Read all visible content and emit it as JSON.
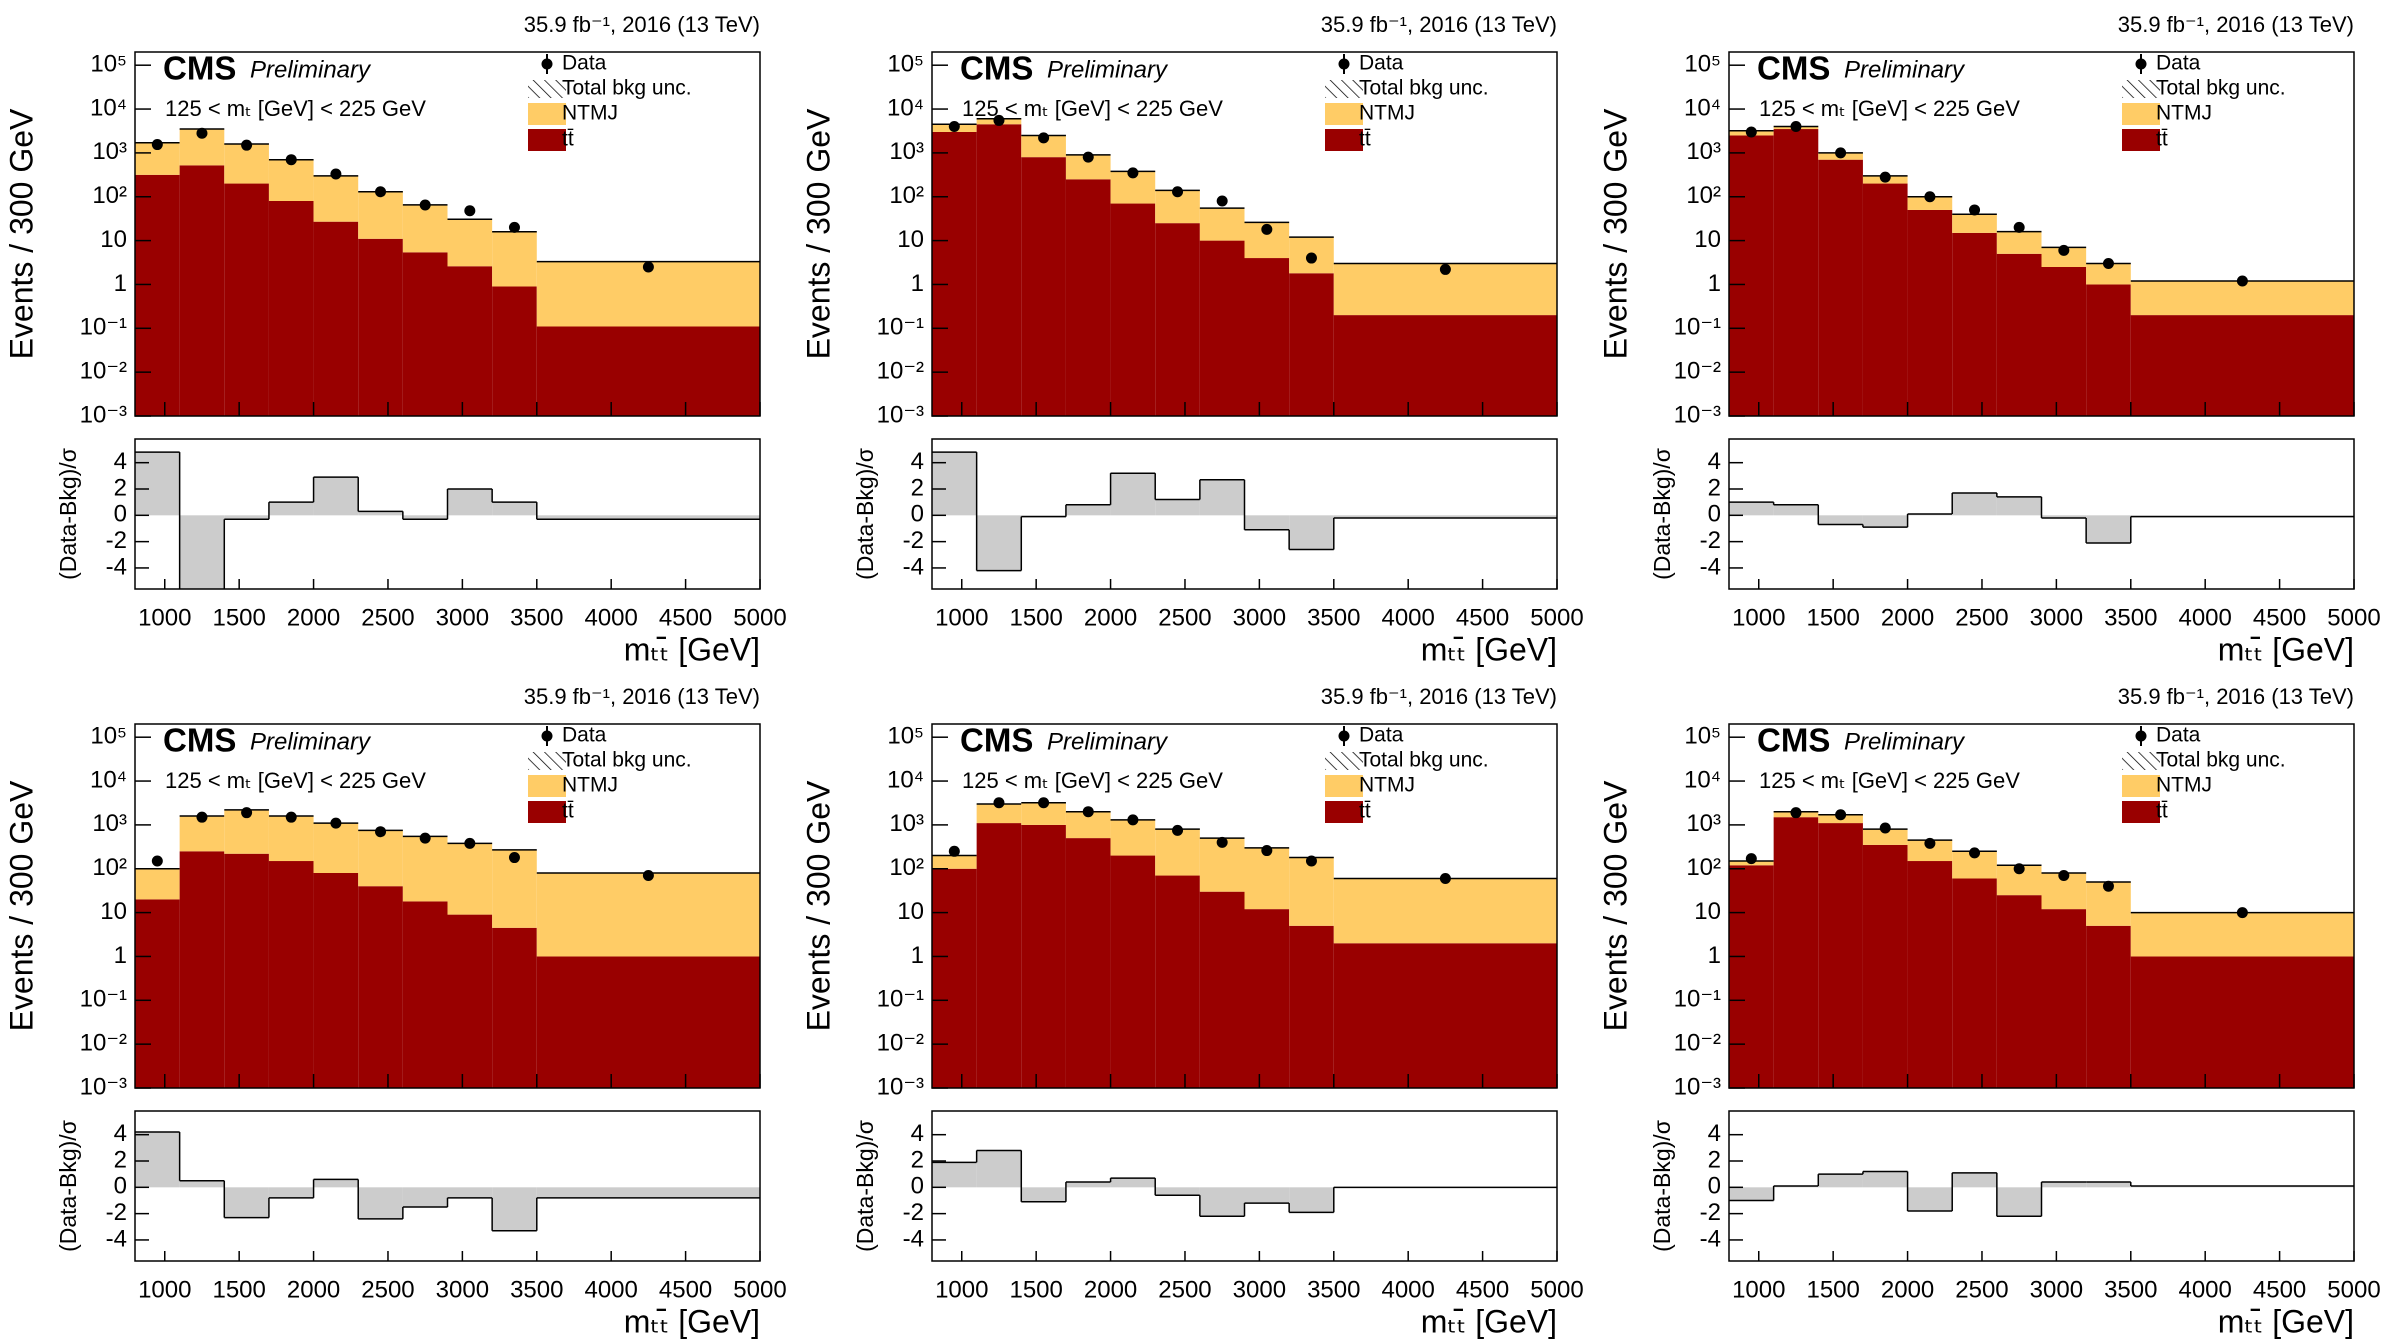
{
  "chart_data": [
    {
      "type": "histogram",
      "title": "35.9 fb⁻¹, 2016 (13 TeV)",
      "experiment": "CMS",
      "status": "Preliminary",
      "selection": "125 < mₜ [GeV] < 225 GeV",
      "ylabel": "Events / 300 GeV",
      "xlabel": "mₜₜ̄ [GeV]",
      "ratio_ylabel": "(Data-Bkg)/σ",
      "uncertainty_label": "Total bkg unc.",
      "bins": [
        800,
        1100,
        1400,
        1700,
        2000,
        2300,
        2600,
        2900,
        3200,
        3500,
        5000
      ],
      "xlim": [
        800,
        5000
      ],
      "xticks": [
        1000,
        1500,
        2000,
        2500,
        3000,
        3500,
        4000,
        4500,
        5000
      ],
      "log_y": true,
      "ylim": [
        0.001,
        200000
      ],
      "yticks": [
        {
          "value": 0.001,
          "label": "10⁻³"
        },
        {
          "value": 0.01,
          "label": "10⁻²"
        },
        {
          "value": 0.1,
          "label": "10⁻¹"
        },
        1,
        10,
        {
          "value": 100,
          "label": "10²"
        },
        {
          "value": 1000,
          "label": "10³"
        },
        {
          "value": 10000,
          "label": "10⁴"
        },
        {
          "value": 100000,
          "label": "10⁵"
        }
      ],
      "series": [
        {
          "name": "tt̄",
          "style": "stack",
          "color": "#990000",
          "values": [
            316,
            520,
            200,
            80,
            27,
            11,
            5.4,
            2.6,
            0.9,
            0.11
          ]
        },
        {
          "name": "NTMJ",
          "style": "stack",
          "color": "#ffcc66",
          "values": [
            1384,
            2980,
            1400,
            620,
            273,
            119,
            60,
            28,
            15,
            3.2
          ]
        },
        {
          "name": "Data",
          "style": "points",
          "color": "#000000",
          "values": [
            1550,
            2800,
            1500,
            700,
            330,
            130,
            65,
            48,
            20,
            2.5
          ]
        }
      ],
      "pulls": [
        4.8,
        -6,
        -0.3,
        1.0,
        2.9,
        0.3,
        -0.3,
        2.0,
        1.0,
        -0.3
      ],
      "pull_color": "#cccccc",
      "ratio_ylim": [
        -5.6,
        5.8
      ],
      "ratio_yticks": [
        -4,
        -2,
        0,
        2,
        4
      ]
    },
    {
      "type": "histogram",
      "title": "35.9 fb⁻¹, 2016 (13 TeV)",
      "experiment": "CMS",
      "status": "Preliminary",
      "selection": "125 < mₜ [GeV] < 225 GeV",
      "ylabel": "Events / 300 GeV",
      "xlabel": "mₜₜ̄ [GeV]",
      "ratio_ylabel": "(Data-Bkg)/σ",
      "uncertainty_label": "Total bkg unc.",
      "bins": [
        800,
        1100,
        1400,
        1700,
        2000,
        2300,
        2600,
        2900,
        3200,
        3500,
        5000
      ],
      "xlim": [
        800,
        5000
      ],
      "xticks": [
        1000,
        1500,
        2000,
        2500,
        3000,
        3500,
        4000,
        4500,
        5000
      ],
      "log_y": true,
      "ylim": [
        0.001,
        200000
      ],
      "yticks": [
        {
          "value": 0.001,
          "label": "10⁻³"
        },
        {
          "value": 0.01,
          "label": "10⁻²"
        },
        {
          "value": 0.1,
          "label": "10⁻¹"
        },
        1,
        10,
        {
          "value": 100,
          "label": "10²"
        },
        {
          "value": 1000,
          "label": "10³"
        },
        {
          "value": 10000,
          "label": "10⁴"
        },
        {
          "value": 100000,
          "label": "10⁵"
        }
      ],
      "series": [
        {
          "name": "tt̄",
          "style": "stack",
          "color": "#990000",
          "values": [
            3000,
            4500,
            800,
            250,
            70,
            25,
            10,
            4,
            1.8,
            0.2
          ]
        },
        {
          "name": "NTMJ",
          "style": "stack",
          "color": "#ffcc66",
          "values": [
            1500,
            1500,
            1700,
            650,
            310,
            115,
            45,
            22,
            10.2,
            2.8
          ]
        },
        {
          "name": "Data",
          "style": "points",
          "color": "#000000",
          "values": [
            4000,
            5500,
            2200,
            800,
            350,
            130,
            80,
            18,
            4,
            2.2
          ]
        }
      ],
      "pulls": [
        4.8,
        -4.2,
        -0.1,
        0.8,
        3.2,
        1.2,
        2.7,
        -1.1,
        -2.6,
        -0.2
      ],
      "pull_color": "#cccccc",
      "ratio_ylim": [
        -5.6,
        5.8
      ],
      "ratio_yticks": [
        -4,
        -2,
        0,
        2,
        4
      ]
    },
    {
      "type": "histogram",
      "title": "35.9 fb⁻¹, 2016 (13 TeV)",
      "experiment": "CMS",
      "status": "Preliminary",
      "selection": "125 < mₜ [GeV] < 225 GeV",
      "ylabel": "Events / 300 GeV",
      "xlabel": "mₜₜ̄ [GeV]",
      "ratio_ylabel": "(Data-Bkg)/σ",
      "uncertainty_label": "Total bkg unc.",
      "bins": [
        800,
        1100,
        1400,
        1700,
        2000,
        2300,
        2600,
        2900,
        3200,
        3500,
        5000
      ],
      "xlim": [
        800,
        5000
      ],
      "xticks": [
        1000,
        1500,
        2000,
        2500,
        3000,
        3500,
        4000,
        4500,
        5000
      ],
      "log_y": true,
      "ylim": [
        0.001,
        200000
      ],
      "yticks": [
        {
          "value": 0.001,
          "label": "10⁻³"
        },
        {
          "value": 0.01,
          "label": "10⁻²"
        },
        {
          "value": 0.1,
          "label": "10⁻¹"
        },
        1,
        10,
        {
          "value": 100,
          "label": "10²"
        },
        {
          "value": 1000,
          "label": "10³"
        },
        {
          "value": 10000,
          "label": "10⁴"
        },
        {
          "value": 100000,
          "label": "10⁵"
        }
      ],
      "series": [
        {
          "name": "tt̄",
          "style": "stack",
          "color": "#990000",
          "values": [
            2500,
            3500,
            700,
            200,
            50,
            15,
            5,
            2.5,
            1,
            0.2
          ]
        },
        {
          "name": "NTMJ",
          "style": "stack",
          "color": "#ffcc66",
          "values": [
            700,
            500,
            300,
            100,
            50,
            25,
            11,
            4.5,
            2,
            1
          ]
        },
        {
          "name": "Data",
          "style": "points",
          "color": "#000000",
          "values": [
            3000,
            4000,
            1000,
            280,
            100,
            50,
            20,
            6,
            3,
            1.2
          ]
        }
      ],
      "pulls": [
        1.0,
        0.8,
        -0.7,
        -0.9,
        0.1,
        1.7,
        1.4,
        -0.2,
        -2.1,
        -0.1
      ],
      "pull_color": "#cccccc",
      "ratio_ylim": [
        -5.6,
        5.8
      ],
      "ratio_yticks": [
        -4,
        -2,
        0,
        2,
        4
      ]
    },
    {
      "type": "histogram",
      "title": "35.9 fb⁻¹, 2016 (13 TeV)",
      "experiment": "CMS",
      "status": "Preliminary",
      "selection": "125 < mₜ [GeV] < 225 GeV",
      "ylabel": "Events / 300 GeV",
      "xlabel": "mₜₜ̄ [GeV]",
      "ratio_ylabel": "(Data-Bkg)/σ",
      "uncertainty_label": "Total bkg unc.",
      "bins": [
        800,
        1100,
        1400,
        1700,
        2000,
        2300,
        2600,
        2900,
        3200,
        3500,
        5000
      ],
      "xlim": [
        800,
        5000
      ],
      "xticks": [
        1000,
        1500,
        2000,
        2500,
        3000,
        3500,
        4000,
        4500,
        5000
      ],
      "log_y": true,
      "ylim": [
        0.001,
        200000
      ],
      "yticks": [
        {
          "value": 0.001,
          "label": "10⁻³"
        },
        {
          "value": 0.01,
          "label": "10⁻²"
        },
        {
          "value": 0.1,
          "label": "10⁻¹"
        },
        1,
        10,
        {
          "value": 100,
          "label": "10²"
        },
        {
          "value": 1000,
          "label": "10³"
        },
        {
          "value": 10000,
          "label": "10⁴"
        },
        {
          "value": 100000,
          "label": "10⁵"
        }
      ],
      "series": [
        {
          "name": "tt̄",
          "style": "stack",
          "color": "#990000",
          "values": [
            20,
            250,
            220,
            150,
            80,
            40,
            18,
            9,
            4.5,
            1
          ]
        },
        {
          "name": "NTMJ",
          "style": "stack",
          "color": "#ffcc66",
          "values": [
            80,
            1350,
            1980,
            1450,
            1020,
            710,
            530,
            370,
            265,
            79
          ]
        },
        {
          "name": "Data",
          "style": "points",
          "color": "#000000",
          "values": [
            150,
            1500,
            1900,
            1500,
            1100,
            700,
            500,
            380,
            180,
            70
          ]
        }
      ],
      "pulls": [
        4.2,
        0.5,
        -2.3,
        -0.8,
        0.6,
        -2.4,
        -1.5,
        -0.8,
        -3.3,
        -0.8
      ],
      "pull_color": "#cccccc",
      "ratio_ylim": [
        -5.6,
        5.8
      ],
      "ratio_yticks": [
        -4,
        -2,
        0,
        2,
        4
      ]
    },
    {
      "type": "histogram",
      "title": "35.9 fb⁻¹, 2016 (13 TeV)",
      "experiment": "CMS",
      "status": "Preliminary",
      "selection": "125 < mₜ [GeV] < 225 GeV",
      "ylabel": "Events / 300 GeV",
      "xlabel": "mₜₜ̄ [GeV]",
      "ratio_ylabel": "(Data-Bkg)/σ",
      "uncertainty_label": "Total bkg unc.",
      "bins": [
        800,
        1100,
        1400,
        1700,
        2000,
        2300,
        2600,
        2900,
        3200,
        3500,
        5000
      ],
      "xlim": [
        800,
        5000
      ],
      "xticks": [
        1000,
        1500,
        2000,
        2500,
        3000,
        3500,
        4000,
        4500,
        5000
      ],
      "log_y": true,
      "ylim": [
        0.001,
        200000
      ],
      "yticks": [
        {
          "value": 0.001,
          "label": "10⁻³"
        },
        {
          "value": 0.01,
          "label": "10⁻²"
        },
        {
          "value": 0.1,
          "label": "10⁻¹"
        },
        1,
        10,
        {
          "value": 100,
          "label": "10²"
        },
        {
          "value": 1000,
          "label": "10³"
        },
        {
          "value": 10000,
          "label": "10⁴"
        },
        {
          "value": 100000,
          "label": "10⁵"
        }
      ],
      "series": [
        {
          "name": "tt̄",
          "style": "stack",
          "color": "#990000",
          "values": [
            100,
            1100,
            1000,
            500,
            200,
            70,
            30,
            12,
            5,
            2
          ]
        },
        {
          "name": "NTMJ",
          "style": "stack",
          "color": "#ffcc66",
          "values": [
            100,
            1900,
            2200,
            1500,
            1100,
            730,
            470,
            288,
            175,
            58
          ]
        },
        {
          "name": "Data",
          "style": "points",
          "color": "#000000",
          "values": [
            250,
            3200,
            3200,
            2000,
            1300,
            750,
            400,
            260,
            150,
            60
          ]
        }
      ],
      "pulls": [
        1.9,
        2.8,
        -1.1,
        0.4,
        0.7,
        -0.6,
        -2.2,
        -1.2,
        -1.9,
        0.0
      ],
      "pull_color": "#cccccc",
      "ratio_ylim": [
        -5.6,
        5.8
      ],
      "ratio_yticks": [
        -4,
        -2,
        0,
        2,
        4
      ]
    },
    {
      "type": "histogram",
      "title": "35.9 fb⁻¹, 2016 (13 TeV)",
      "experiment": "CMS",
      "status": "Preliminary",
      "selection": "125 < mₜ [GeV] < 225 GeV",
      "ylabel": "Events / 300 GeV",
      "xlabel": "mₜₜ̄ [GeV]",
      "ratio_ylabel": "(Data-Bkg)/σ",
      "uncertainty_label": "Total bkg unc.",
      "bins": [
        800,
        1100,
        1400,
        1700,
        2000,
        2300,
        2600,
        2900,
        3200,
        3500,
        5000
      ],
      "xlim": [
        800,
        5000
      ],
      "xticks": [
        1000,
        1500,
        2000,
        2500,
        3000,
        3500,
        4000,
        4500,
        5000
      ],
      "log_y": true,
      "ylim": [
        0.001,
        200000
      ],
      "yticks": [
        {
          "value": 0.001,
          "label": "10⁻³"
        },
        {
          "value": 0.01,
          "label": "10⁻²"
        },
        {
          "value": 0.1,
          "label": "10⁻¹"
        },
        1,
        10,
        {
          "value": 100,
          "label": "10²"
        },
        {
          "value": 1000,
          "label": "10³"
        },
        {
          "value": 10000,
          "label": "10⁴"
        },
        {
          "value": 100000,
          "label": "10⁵"
        }
      ],
      "series": [
        {
          "name": "tt̄",
          "style": "stack",
          "color": "#990000",
          "values": [
            120,
            1500,
            1100,
            350,
            150,
            60,
            25,
            12,
            5,
            1
          ]
        },
        {
          "name": "NTMJ",
          "style": "stack",
          "color": "#ffcc66",
          "values": [
            30,
            500,
            600,
            450,
            300,
            190,
            95,
            68,
            45,
            9
          ]
        },
        {
          "name": "Data",
          "style": "points",
          "color": "#000000",
          "values": [
            170,
            1900,
            1700,
            850,
            380,
            230,
            100,
            70,
            40,
            10
          ]
        }
      ],
      "pulls": [
        -1.0,
        0.1,
        1.0,
        1.2,
        -1.8,
        1.1,
        -2.2,
        0.4,
        0.4,
        0.1
      ],
      "pull_color": "#cccccc",
      "ratio_ylim": [
        -5.6,
        5.8
      ],
      "ratio_yticks": [
        -4,
        -2,
        0,
        2,
        4
      ]
    }
  ]
}
